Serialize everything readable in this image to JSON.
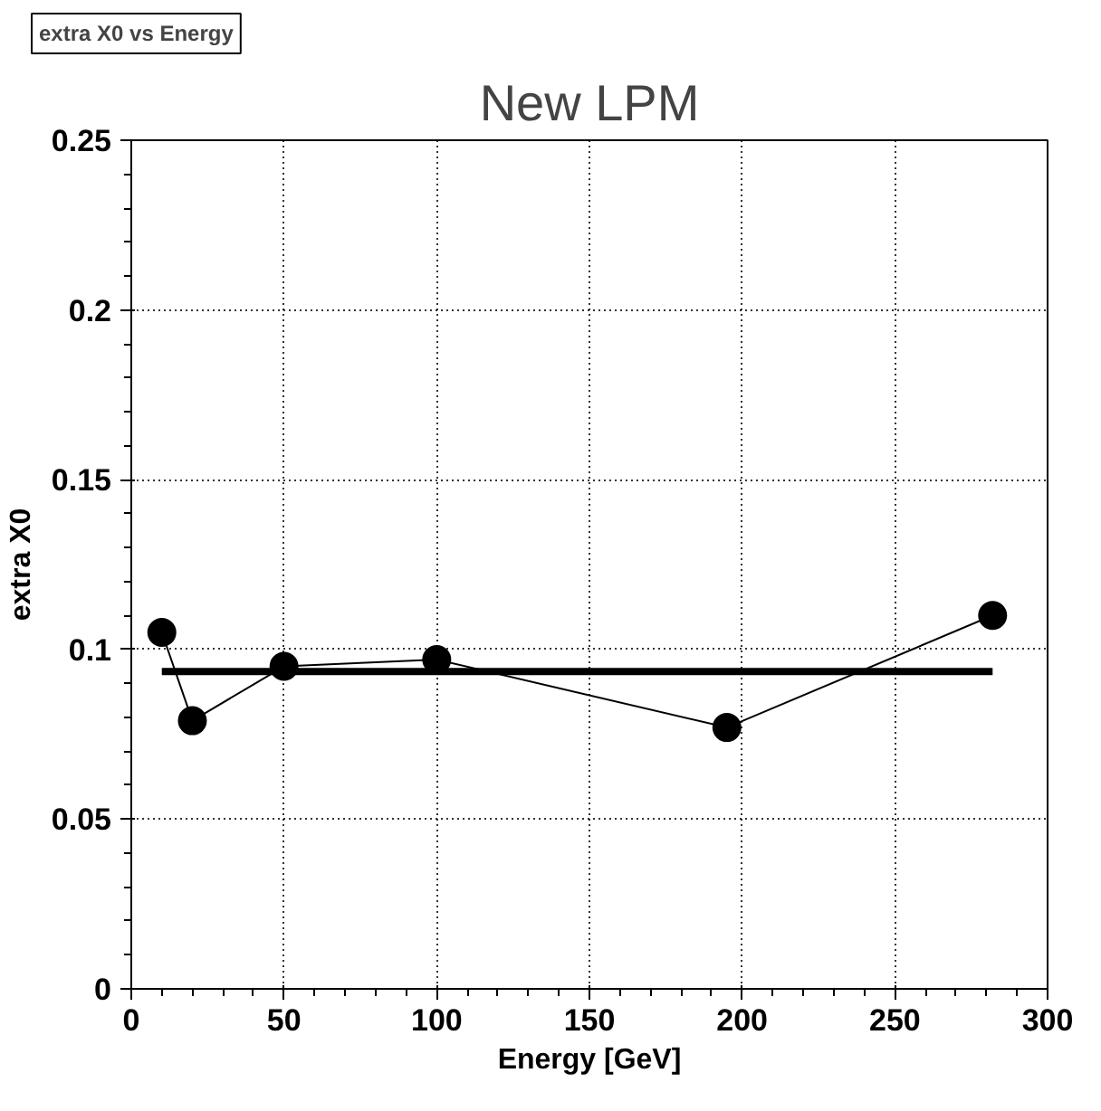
{
  "chart_data": {
    "type": "line",
    "title": "extra X0 vs Energy",
    "subtitle": "New LPM",
    "xlabel": "Energy [GeV]",
    "ylabel": "extra X0",
    "x": [
      10,
      20,
      50,
      100,
      195,
      282
    ],
    "series": [
      {
        "color": "#000000",
        "values": [
          0.105,
          0.079,
          0.095,
          0.097,
          0.077,
          0.11
        ],
        "marker": "circle"
      },
      {
        "type": "line",
        "color": "#000000",
        "x": [
          10,
          282
        ],
        "values": [
          0.0935,
          0.0935
        ],
        "marker": "none"
      }
    ],
    "xlim": [
      0,
      300
    ],
    "xticks": [
      0,
      50,
      100,
      150,
      200,
      250,
      300
    ],
    "ylim": [
      0,
      0.25
    ],
    "yticks": [
      0,
      0.05,
      {
        "value": 0.1,
        "label": "0.1"
      },
      0.15,
      {
        "value": 0.2,
        "label": "0.2"
      },
      0.25
    ],
    "grid": true,
    "line_style": "solid"
  }
}
